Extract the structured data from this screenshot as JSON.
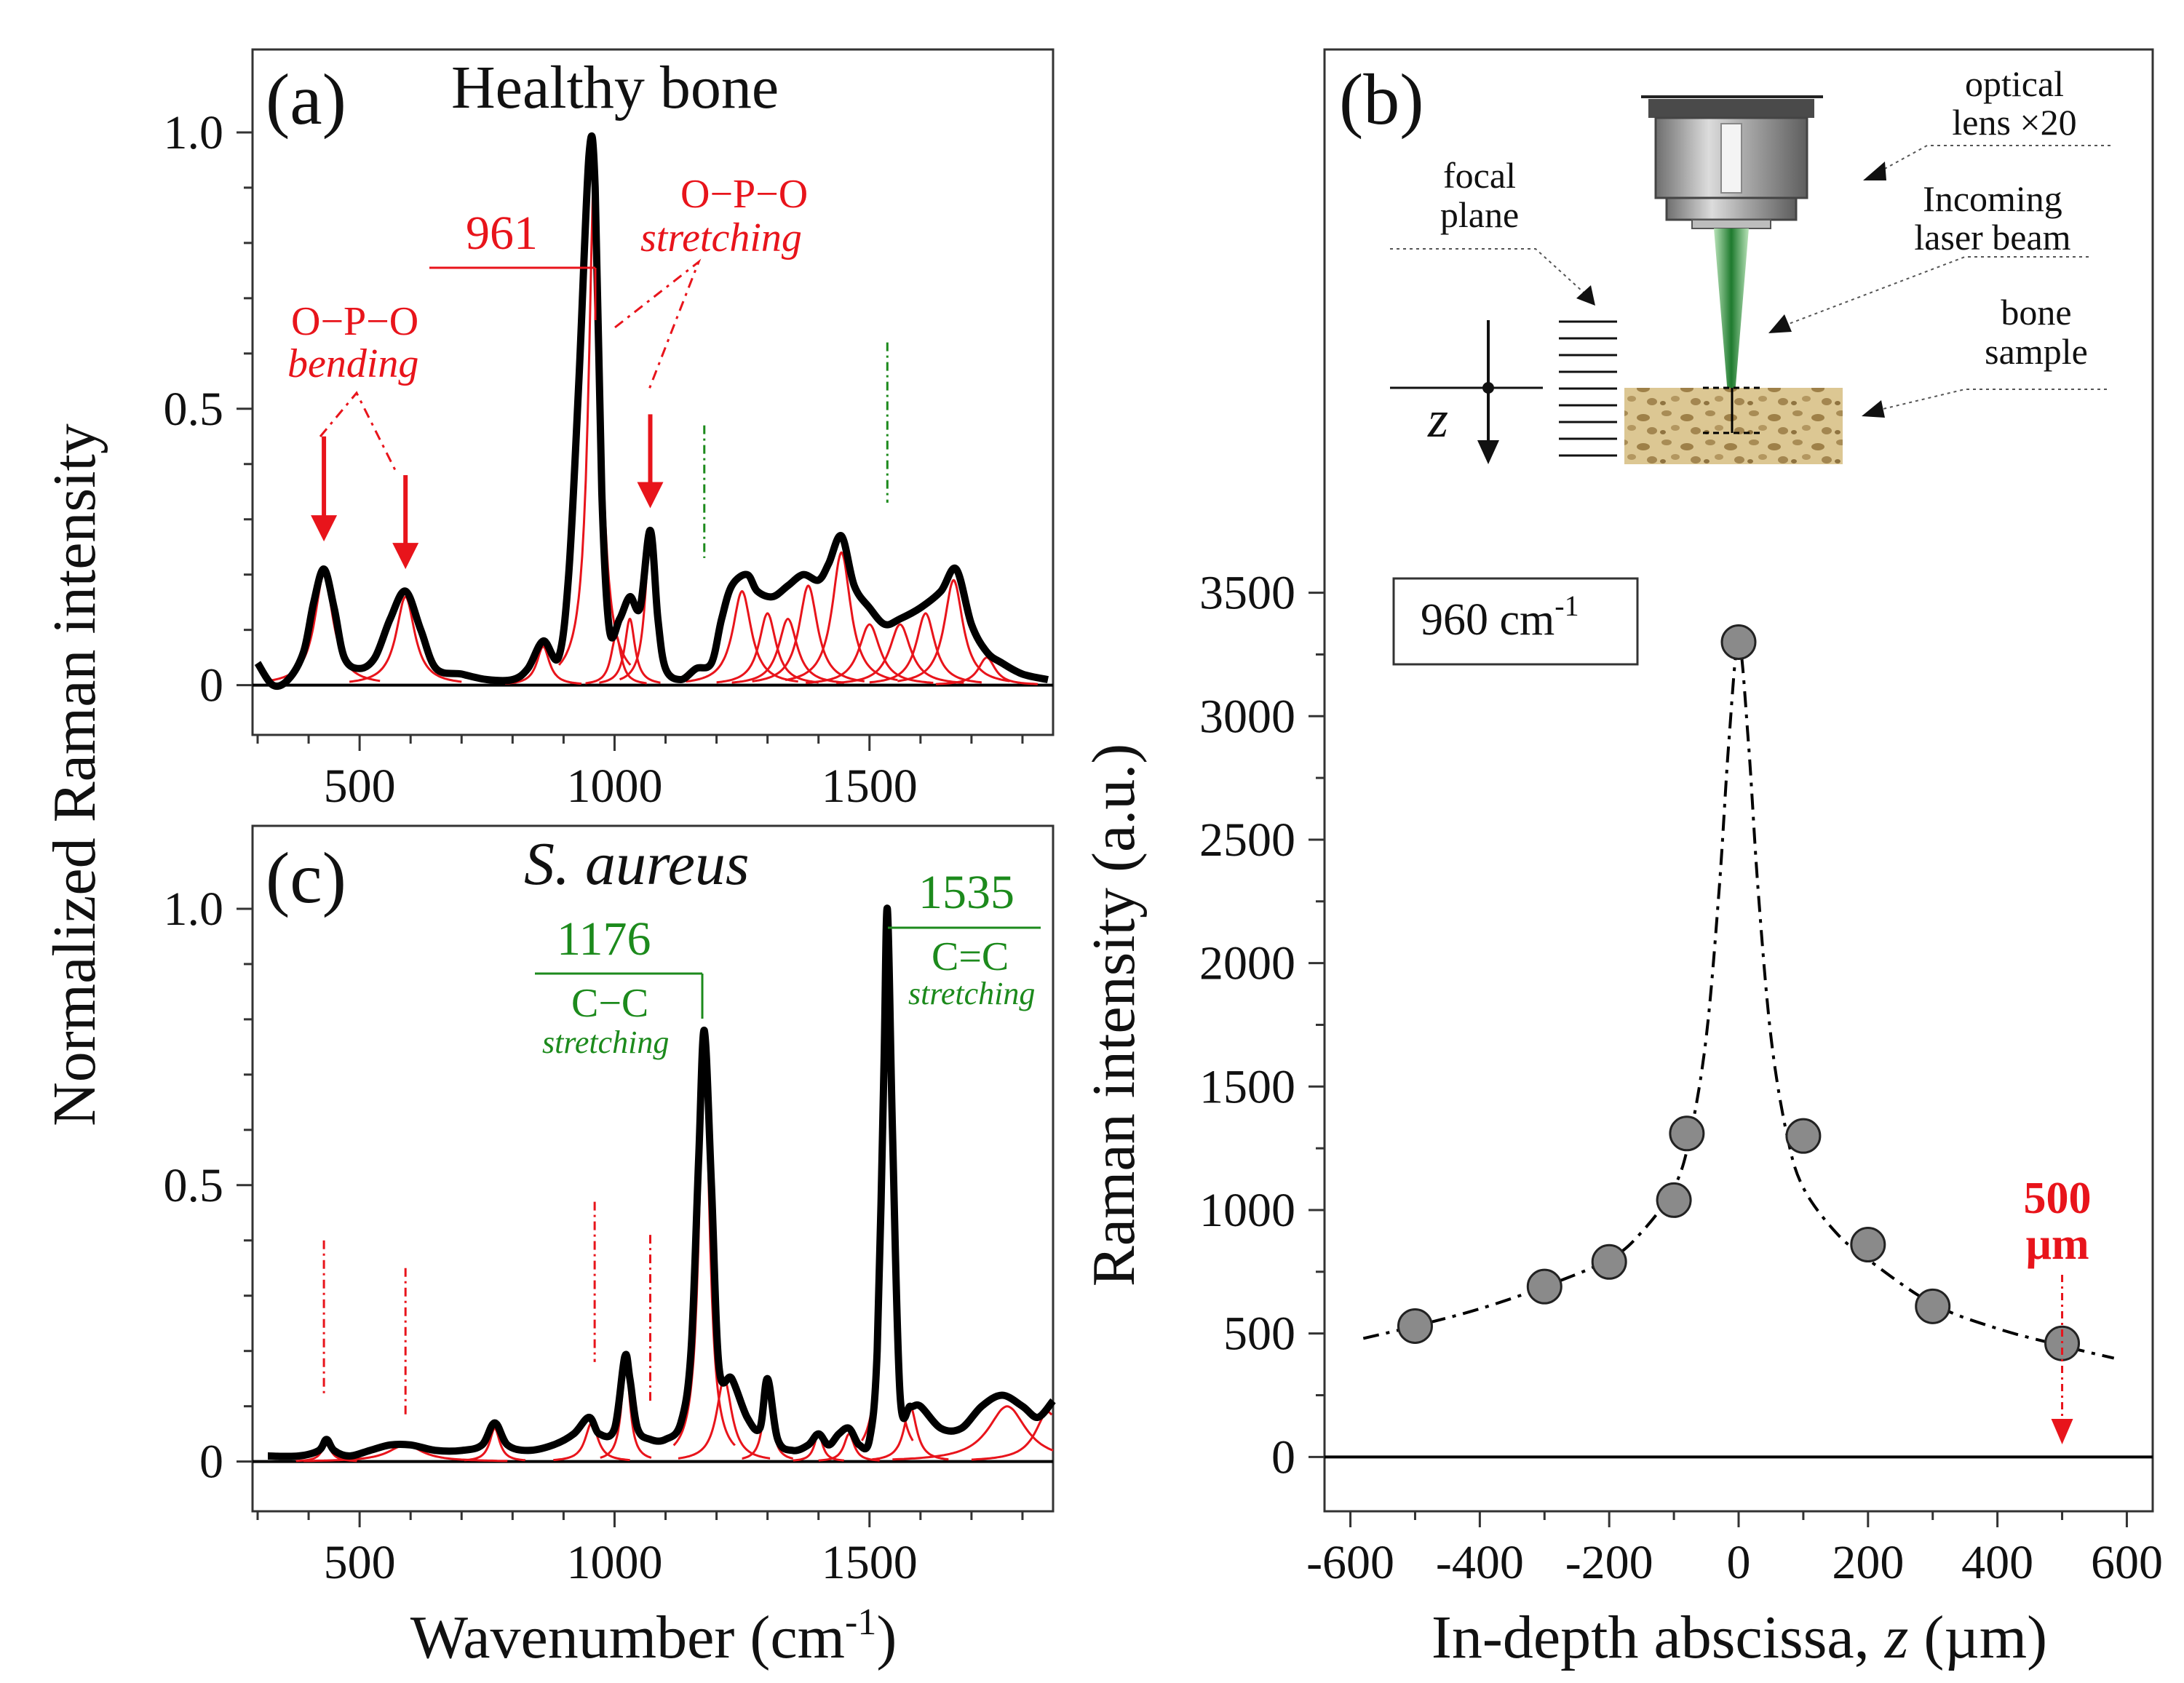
{
  "chart_data": [
    {
      "id": "a",
      "type": "line",
      "panel_label": "(a)",
      "title": "Healthy bone",
      "xlim": [
        290,
        1860
      ],
      "ylim": [
        -0.09,
        1.15
      ],
      "xticks": [
        500,
        1000,
        1500
      ],
      "yticks": [
        0,
        0.5,
        1.0
      ],
      "ytick_labels": [
        "0",
        "0.5",
        "1.0"
      ],
      "x": [
        300,
        330,
        360,
        390,
        410,
        430,
        450,
        470,
        500,
        530,
        560,
        590,
        620,
        650,
        700,
        750,
        800,
        830,
        860,
        890,
        910,
        930,
        950,
        962,
        975,
        990,
        1010,
        1030,
        1050,
        1070,
        1085,
        1100,
        1130,
        1160,
        1190,
        1210,
        1230,
        1260,
        1280,
        1310,
        1340,
        1370,
        1400,
        1420,
        1445,
        1470,
        1500,
        1530,
        1560,
        1600,
        1640,
        1670,
        1700,
        1730,
        1760,
        1800,
        1850
      ],
      "values": [
        0.04,
        0.0,
        0.01,
        0.06,
        0.15,
        0.21,
        0.14,
        0.05,
        0.03,
        0.05,
        0.12,
        0.17,
        0.1,
        0.03,
        0.02,
        0.01,
        0.01,
        0.03,
        0.08,
        0.05,
        0.2,
        0.55,
        0.96,
        0.9,
        0.35,
        0.1,
        0.12,
        0.16,
        0.14,
        0.28,
        0.12,
        0.03,
        0.01,
        0.03,
        0.04,
        0.12,
        0.18,
        0.2,
        0.17,
        0.16,
        0.18,
        0.2,
        0.19,
        0.22,
        0.27,
        0.18,
        0.14,
        0.11,
        0.12,
        0.14,
        0.17,
        0.21,
        0.11,
        0.06,
        0.04,
        0.02,
        0.01
      ],
      "component_peaks": [
        {
          "center": 430,
          "height": 0.2,
          "width": 22
        },
        {
          "center": 590,
          "height": 0.16,
          "width": 22
        },
        {
          "center": 860,
          "height": 0.07,
          "width": 15
        },
        {
          "center": 961,
          "height": 0.95,
          "width": 14
        },
        {
          "center": 1003,
          "height": 0.09,
          "width": 12
        },
        {
          "center": 1030,
          "height": 0.12,
          "width": 12
        },
        {
          "center": 1070,
          "height": 0.27,
          "width": 12
        },
        {
          "center": 1250,
          "height": 0.17,
          "width": 22
        },
        {
          "center": 1300,
          "height": 0.13,
          "width": 20
        },
        {
          "center": 1340,
          "height": 0.12,
          "width": 22
        },
        {
          "center": 1380,
          "height": 0.18,
          "width": 22
        },
        {
          "center": 1445,
          "height": 0.24,
          "width": 22
        },
        {
          "center": 1500,
          "height": 0.11,
          "width": 25
        },
        {
          "center": 1560,
          "height": 0.11,
          "width": 25
        },
        {
          "center": 1610,
          "height": 0.13,
          "width": 22
        },
        {
          "center": 1665,
          "height": 0.19,
          "width": 22
        },
        {
          "center": 1730,
          "height": 0.05,
          "width": 20
        }
      ],
      "green_marker_lines": [
        1176,
        1535
      ],
      "annotations": {
        "peak_961": "961",
        "stretching_line1": "O−P−O",
        "stretching_line2": "stretching",
        "bending_line1": "O−P−O",
        "bending_line2": "bending"
      },
      "arrow_positions": [
        430,
        590,
        1070
      ]
    },
    {
      "id": "c",
      "type": "line",
      "panel_label": "(c)",
      "title": "S. aureus",
      "xlim": [
        290,
        1860
      ],
      "ylim": [
        -0.09,
        1.15
      ],
      "xticks": [
        500,
        1000,
        1500
      ],
      "yticks": [
        0,
        0.5,
        1.0
      ],
      "ytick_labels": [
        "0",
        "0.5",
        "1.0"
      ],
      "x": [
        320,
        380,
        420,
        435,
        450,
        480,
        520,
        560,
        600,
        650,
        700,
        740,
        765,
        790,
        830,
        880,
        920,
        950,
        970,
        1000,
        1020,
        1030,
        1045,
        1070,
        1100,
        1130,
        1150,
        1165,
        1176,
        1190,
        1205,
        1230,
        1260,
        1285,
        1300,
        1320,
        1350,
        1380,
        1400,
        1420,
        1440,
        1460,
        1480,
        1500,
        1515,
        1528,
        1535,
        1545,
        1560,
        1580,
        1600,
        1640,
        1680,
        1720,
        1760,
        1800,
        1830,
        1860
      ],
      "values": [
        0.01,
        0.01,
        0.02,
        0.04,
        0.02,
        0.01,
        0.02,
        0.03,
        0.03,
        0.02,
        0.02,
        0.03,
        0.07,
        0.03,
        0.02,
        0.03,
        0.05,
        0.08,
        0.05,
        0.06,
        0.19,
        0.15,
        0.06,
        0.04,
        0.04,
        0.07,
        0.2,
        0.55,
        0.78,
        0.5,
        0.17,
        0.15,
        0.08,
        0.06,
        0.15,
        0.04,
        0.02,
        0.03,
        0.05,
        0.03,
        0.05,
        0.06,
        0.03,
        0.04,
        0.2,
        0.7,
        1.0,
        0.6,
        0.12,
        0.1,
        0.1,
        0.06,
        0.06,
        0.1,
        0.12,
        0.1,
        0.08,
        0.11
      ],
      "component_peaks": [
        {
          "center": 435,
          "height": 0.03,
          "width": 12
        },
        {
          "center": 590,
          "height": 0.03,
          "width": 40
        },
        {
          "center": 765,
          "height": 0.06,
          "width": 12
        },
        {
          "center": 955,
          "height": 0.07,
          "width": 15
        },
        {
          "center": 1022,
          "height": 0.18,
          "width": 10
        },
        {
          "center": 1176,
          "height": 0.76,
          "width": 12
        },
        {
          "center": 1215,
          "height": 0.15,
          "width": 18
        },
        {
          "center": 1300,
          "height": 0.14,
          "width": 10
        },
        {
          "center": 1400,
          "height": 0.05,
          "width": 10
        },
        {
          "center": 1460,
          "height": 0.05,
          "width": 12
        },
        {
          "center": 1535,
          "height": 0.98,
          "width": 10
        },
        {
          "center": 1580,
          "height": 0.1,
          "width": 15
        },
        {
          "center": 1770,
          "height": 0.1,
          "width": 45
        },
        {
          "center": 1850,
          "height": 0.09,
          "width": 30
        }
      ],
      "red_marker_lines": [
        430,
        590,
        961,
        1070
      ],
      "annotations": {
        "peak_1176": "1176",
        "cc_bond": "C−C",
        "cc_mode": "stretching",
        "peak_1535": "1535",
        "c_eq_c_bond": "C=C",
        "c_eq_c_mode": "stretching"
      }
    },
    {
      "id": "b",
      "type": "scatter",
      "panel_label": "(b)",
      "xlabel_prefix": "In-depth abscissa, ",
      "xlabel_var": "z",
      "xlabel_suffix": " (µm)",
      "ylabel": "Raman intensity (a.u.)",
      "xlim": [
        -640,
        640
      ],
      "ylim": [
        -220,
        5700
      ],
      "xticks": [
        -600,
        -400,
        -200,
        0,
        200,
        400,
        600
      ],
      "yticks": [
        0,
        500,
        1000,
        1500,
        2000,
        2500,
        3000,
        3500
      ],
      "x": [
        -500,
        -300,
        -200,
        -100,
        -80,
        0,
        100,
        200,
        300,
        500
      ],
      "values": [
        530,
        690,
        790,
        1040,
        1310,
        3300,
        1300,
        860,
        610,
        460
      ],
      "fit_x": [
        -580,
        -500,
        -400,
        -300,
        -200,
        -150,
        -100,
        -75,
        -50,
        -30,
        -15,
        0,
        15,
        30,
        50,
        75,
        100,
        150,
        200,
        300,
        400,
        500,
        580
      ],
      "fit_values": [
        480,
        530,
        600,
        690,
        800,
        910,
        1090,
        1300,
        1700,
        2300,
        2900,
        3300,
        2900,
        2300,
        1700,
        1300,
        1090,
        910,
        800,
        620,
        520,
        450,
        400
      ],
      "legend_text": "960 cm",
      "legend_sup": "-1",
      "annotation_500_line1": "500",
      "annotation_500_line2": "µm",
      "annotation_500_x": 500
    }
  ],
  "shared": {
    "ylabel_left": "Normalized Raman intensity",
    "xlabel_left": "Wavenumber (cm",
    "xlabel_left_sup": "-1",
    "xlabel_left_end": ")"
  },
  "inset": {
    "optical_lens_line1": "optical",
    "optical_lens_line2": "lens ×20",
    "incoming_line1": "Incoming",
    "incoming_line2": "laser beam",
    "bone_line1": "bone",
    "bone_line2": "sample",
    "focal_line1": "focal",
    "focal_line2": "plane",
    "z_label": "z"
  },
  "colors": {
    "peak_fit": "#e8141b",
    "annotation_green": "#1c8a1c",
    "spectrum": "#000000",
    "marker_fill": "#8a8a8a",
    "bone_sample": "#d8c28e"
  }
}
